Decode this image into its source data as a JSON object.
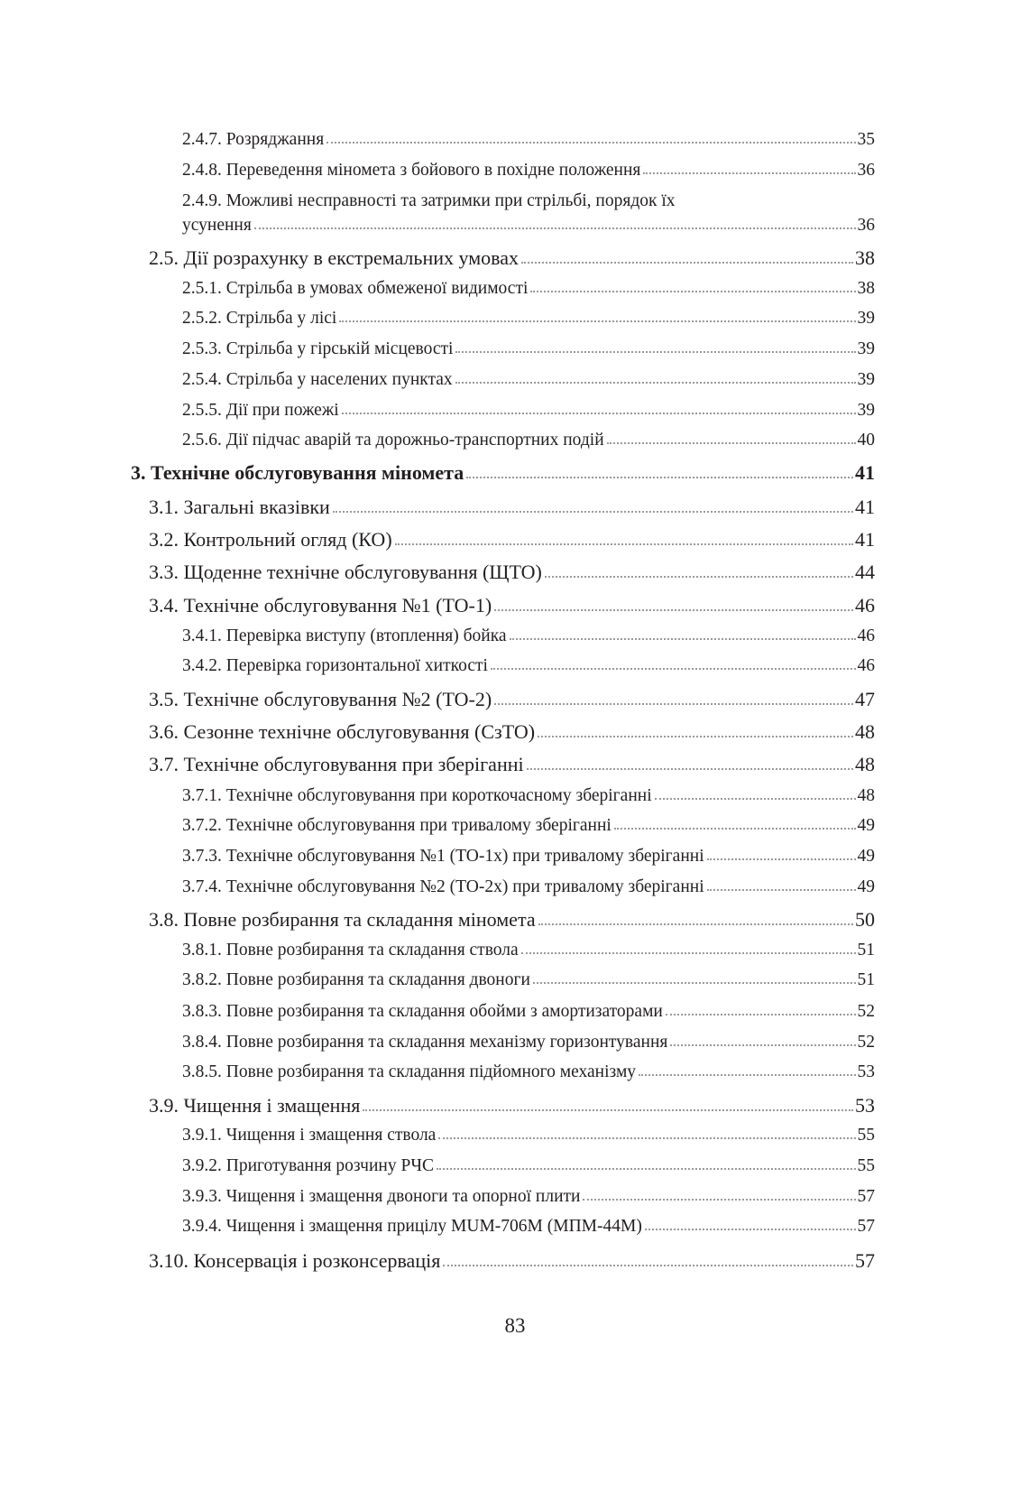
{
  "toc": [
    {
      "level": 3,
      "title": "2.4.7. Розряджання",
      "page": "35"
    },
    {
      "level": 3,
      "title": "2.4.8. Переведення міномета з бойового в похідне положення",
      "page": "36"
    },
    {
      "level": 3,
      "title_first": "2.4.9. Можливі несправності  та затримки при стрільбі, порядок їх",
      "title": "усунення",
      "page": "36"
    },
    {
      "level": 2,
      "title": "2.5. Дії розрахунку в екстремальних умовах",
      "page": "38"
    },
    {
      "level": 3,
      "title": "2.5.1. Стрільба в умовах обмеженої видимості",
      "page": "38"
    },
    {
      "level": 3,
      "title": "2.5.2. Стрільба у лісі",
      "page": "39"
    },
    {
      "level": 3,
      "title": "2.5.3. Стрільба у гірській місцевості",
      "page": "39"
    },
    {
      "level": 3,
      "title": "2.5.4. Стрільба у населених пунктах",
      "page": "39"
    },
    {
      "level": 3,
      "title": "2.5.5. Дії при пожежі",
      "page": "39"
    },
    {
      "level": 3,
      "title": "2.5.6. Дії підчас аварій та дорожньо-транспортних подій",
      "page": "40"
    },
    {
      "level": 1,
      "title": "3. Технічне обслуговування міномета",
      "page": "41"
    },
    {
      "level": 2,
      "title": "3.1. Загальні вказівки",
      "page": "41"
    },
    {
      "level": 2,
      "title": "3.2. Контрольний огляд (КО)",
      "page": "41"
    },
    {
      "level": 2,
      "title": "3.3. Щоденне технічне обслуговування (ЩТО)",
      "page": "44"
    },
    {
      "level": 2,
      "title": "3.4. Технічне обслуговування №1 (ТО-1)",
      "page": "46"
    },
    {
      "level": 3,
      "title": "3.4.1. Перевірка виступу (втоплення) бойка",
      "page": "46"
    },
    {
      "level": 3,
      "title": "3.4.2. Перевірка горизонтальної хиткості",
      "page": "46"
    },
    {
      "level": 2,
      "title": "3.5. Технічне обслуговування №2 (ТО-2)",
      "page": "47"
    },
    {
      "level": 2,
      "title": "3.6. Сезонне технічне обслуговування (СзТО)",
      "page": "48"
    },
    {
      "level": 2,
      "title": "3.7. Технічне обслуговування при зберіганні",
      "page": "48"
    },
    {
      "level": 3,
      "title": "3.7.1. Технічне обслуговування при короткочасному зберіганні",
      "page": "48"
    },
    {
      "level": 3,
      "title": "3.7.2. Технічне обслуговування при тривалому зберіганні",
      "page": "49"
    },
    {
      "level": 3,
      "title": "3.7.3. Технічне обслуговування №1 (ТО-1х) при тривалому зберіганні",
      "page": "49"
    },
    {
      "level": 3,
      "title": "3.7.4. Технічне обслуговування №2 (ТО-2х) при тривалому зберіганні",
      "page": "49"
    },
    {
      "level": 2,
      "title": "3.8. Повне розбирання та складання міномета",
      "page": "50"
    },
    {
      "level": 3,
      "title": "3.8.1. Повне розбирання та складання ствола",
      "page": "51"
    },
    {
      "level": 3,
      "title": "3.8.2. Повне розбирання та складання двоноги",
      "page": "51"
    },
    {
      "level": 3,
      "title": "3.8.3. Повне розбирання та складання обойми з амортизаторами",
      "page": "52"
    },
    {
      "level": 3,
      "title": "3.8.4. Повне розбирання та складання механізму горизонтування",
      "page": "52"
    },
    {
      "level": 3,
      "title": "3.8.5. Повне розбирання та складання підйомного механізму",
      "page": "53"
    },
    {
      "level": 2,
      "title": "3.9. Чищення і змащення",
      "page": "53"
    },
    {
      "level": 3,
      "title": "3.9.1. Чищення і змащення ствола",
      "page": "55"
    },
    {
      "level": 3,
      "title": "3.9.2. Приготування розчину РЧС",
      "page": "55"
    },
    {
      "level": 3,
      "title": "3.9.3. Чищення і змащення двоноги та опорної плити",
      "page": "57"
    },
    {
      "level": 3,
      "title": "3.9.4. Чищення і змащення прицілу МUМ-706М (МПМ-44М)",
      "page": "57"
    },
    {
      "level": 2,
      "title": "3.10. Консервація і розконсервація",
      "page": "57"
    }
  ],
  "page_number": "83"
}
